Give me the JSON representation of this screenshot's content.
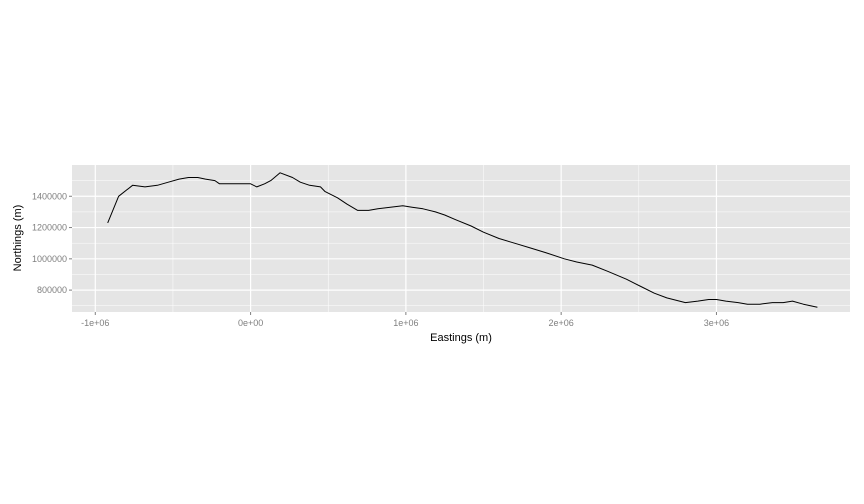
{
  "chart_data": {
    "type": "line",
    "title": "",
    "xlabel": "Eastings (m)",
    "ylabel": "Northings (m)",
    "xlim": [
      -1150000,
      3860000
    ],
    "ylim": [
      660000,
      1600000
    ],
    "grid": true,
    "panel_background": "#e5e5e5",
    "grid_color": "#ffffff",
    "line_color": "#000000",
    "x_ticks": [
      {
        "value": -1000000,
        "label": "-1e+06"
      },
      {
        "value": 0,
        "label": "0e+00"
      },
      {
        "value": 1000000,
        "label": "1e+06"
      },
      {
        "value": 2000000,
        "label": "2e+06"
      },
      {
        "value": 3000000,
        "label": "3e+06"
      }
    ],
    "y_ticks": [
      {
        "value": 800000,
        "label": "800000"
      },
      {
        "value": 1000000,
        "label": "1000000"
      },
      {
        "value": 1200000,
        "label": "1200000"
      },
      {
        "value": 1400000,
        "label": "1400000"
      }
    ],
    "series": [
      {
        "x": [
          -920000,
          -850000,
          -760000,
          -680000,
          -600000,
          -530000,
          -460000,
          -400000,
          -340000,
          -290000,
          -230000,
          -200000,
          -130000,
          -60000,
          0,
          40000,
          90000,
          130000,
          190000,
          270000,
          320000,
          380000,
          450000,
          480000,
          560000,
          620000,
          690000,
          760000,
          820000,
          900000,
          980000,
          1040000,
          1110000,
          1190000,
          1250000,
          1320000,
          1420000,
          1500000,
          1600000,
          1700000,
          1800000,
          1900000,
          2020000,
          2100000,
          2200000,
          2300000,
          2420000,
          2520000,
          2600000,
          2680000,
          2800000,
          2880000,
          2950000,
          3000000,
          3060000,
          3140000,
          3200000,
          3280000,
          3360000,
          3430000,
          3490000,
          3560000,
          3650000
        ],
        "y": [
          1230000,
          1400000,
          1470000,
          1460000,
          1470000,
          1490000,
          1510000,
          1520000,
          1520000,
          1510000,
          1500000,
          1480000,
          1480000,
          1480000,
          1480000,
          1460000,
          1480000,
          1500000,
          1550000,
          1520000,
          1490000,
          1470000,
          1460000,
          1430000,
          1390000,
          1350000,
          1310000,
          1310000,
          1320000,
          1330000,
          1340000,
          1330000,
          1320000,
          1300000,
          1280000,
          1250000,
          1210000,
          1170000,
          1130000,
          1100000,
          1070000,
          1040000,
          1000000,
          980000,
          960000,
          920000,
          870000,
          820000,
          780000,
          750000,
          720000,
          730000,
          740000,
          740000,
          730000,
          720000,
          710000,
          710000,
          720000,
          720000,
          730000,
          710000,
          690000
        ]
      }
    ]
  }
}
